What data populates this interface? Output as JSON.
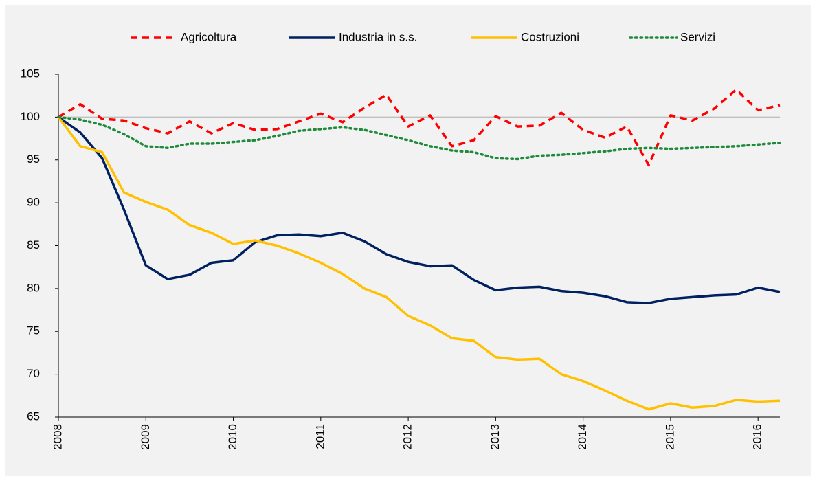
{
  "chart_data": {
    "type": "line",
    "x": [
      2008,
      2008.25,
      2008.5,
      2008.75,
      2009,
      2009.25,
      2009.5,
      2009.75,
      2010,
      2010.25,
      2010.5,
      2010.75,
      2011,
      2011.25,
      2011.5,
      2011.75,
      2012,
      2012.25,
      2012.5,
      2012.75,
      2013,
      2013.25,
      2013.5,
      2013.75,
      2014,
      2014.25,
      2014.5,
      2014.75,
      2015,
      2015.25,
      2015.5,
      2015.75,
      2016,
      2016.25
    ],
    "series": [
      {
        "name": "Agricoltura",
        "color": "#ff0000",
        "style": "dashed",
        "values": [
          100,
          101.5,
          99.8,
          99.6,
          98.7,
          98.1,
          99.5,
          98.1,
          99.3,
          98.5,
          98.6,
          99.5,
          100.4,
          99.4,
          101.1,
          102.6,
          98.9,
          100.2,
          96.6,
          97.3,
          100.1,
          98.9,
          99.0,
          100.5,
          98.5,
          97.6,
          98.9,
          94.4,
          100.2,
          99.6,
          101.0,
          103.2,
          100.8,
          101.4
        ]
      },
      {
        "name": "Industria in s.s.",
        "color": "#002060",
        "style": "solid",
        "values": [
          100,
          98.2,
          95.2,
          89.2,
          82.7,
          81.1,
          81.6,
          83.0,
          83.3,
          85.4,
          86.2,
          86.3,
          86.1,
          86.5,
          85.5,
          84.0,
          83.1,
          82.6,
          82.7,
          81.0,
          79.8,
          80.1,
          80.2,
          79.7,
          79.5,
          79.1,
          78.4,
          78.3,
          78.8,
          79.0,
          79.2,
          79.3,
          80.1,
          79.6
        ]
      },
      {
        "name": "Costruzioni",
        "color": "#ffc000",
        "style": "solid",
        "values": [
          100,
          96.6,
          95.9,
          91.2,
          90.1,
          89.2,
          87.4,
          86.5,
          85.2,
          85.6,
          85.0,
          84.1,
          83.0,
          81.7,
          80.0,
          79.0,
          76.8,
          75.7,
          74.2,
          73.9,
          72.0,
          71.7,
          71.8,
          70.0,
          69.2,
          68.1,
          66.9,
          65.9,
          66.6,
          66.1,
          66.3,
          67.0,
          66.8,
          66.9
        ]
      },
      {
        "name": "Servizi",
        "color": "#1e8b3a",
        "style": "dotted",
        "values": [
          100,
          99.7,
          99.1,
          98.0,
          96.6,
          96.4,
          96.9,
          96.9,
          97.1,
          97.3,
          97.8,
          98.4,
          98.6,
          98.8,
          98.5,
          97.9,
          97.3,
          96.6,
          96.1,
          95.9,
          95.2,
          95.1,
          95.5,
          95.6,
          95.8,
          96.0,
          96.3,
          96.4,
          96.3,
          96.4,
          96.5,
          96.6,
          96.8,
          97.0
        ]
      }
    ],
    "xlim": [
      2008,
      2016.25
    ],
    "xticks": [
      2008,
      2009,
      2010,
      2011,
      2012,
      2013,
      2014,
      2015,
      2016
    ],
    "ylim": [
      65,
      105
    ],
    "yticks": [
      65,
      70,
      75,
      80,
      85,
      90,
      95,
      100,
      105
    ],
    "hline": 100,
    "legend": "top"
  }
}
